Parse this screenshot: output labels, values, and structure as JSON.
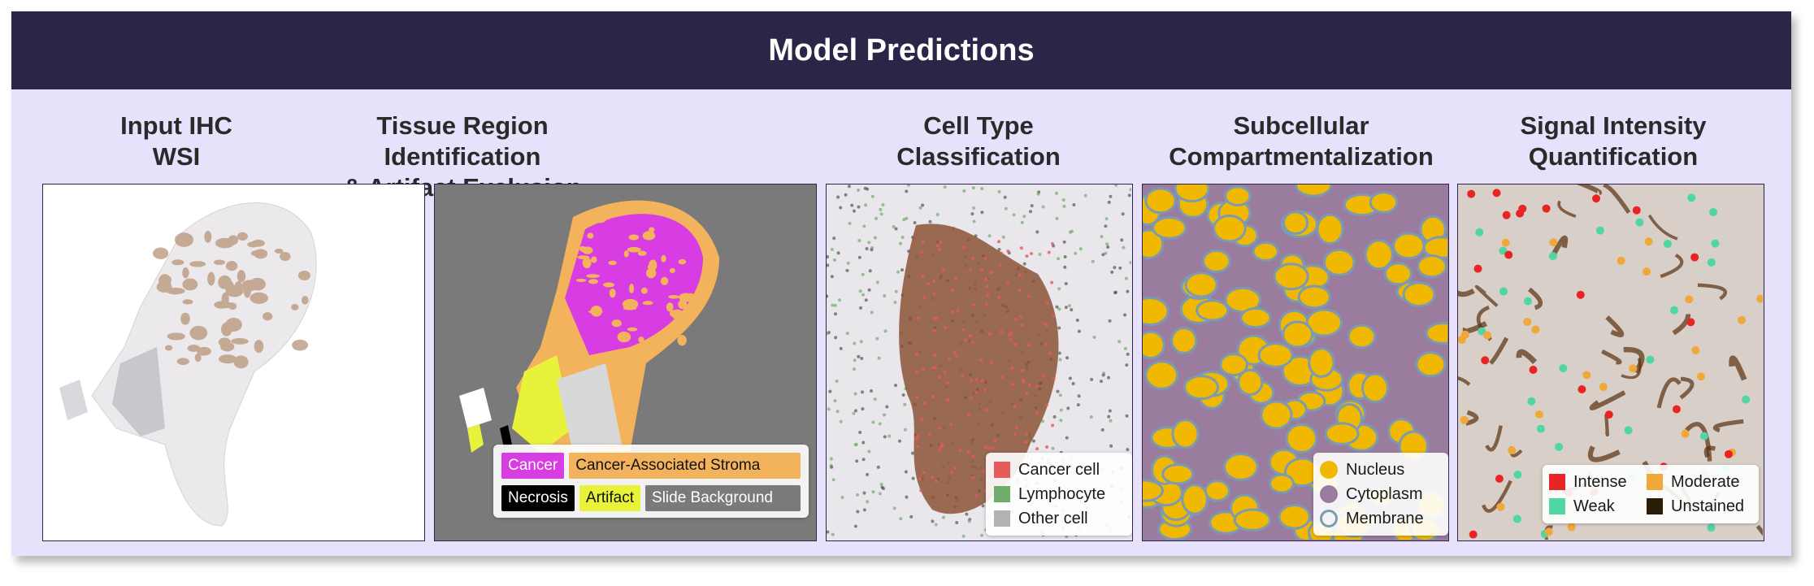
{
  "banner": {
    "title": "Model Predictions"
  },
  "panels": [
    {
      "title": "Input IHC\nWSI"
    },
    {
      "title": "Tissue Region Identification\n& Artifact Exclusion"
    },
    {
      "title": "Cell Type\nClassification"
    },
    {
      "title": "Subcellular\nCompartmentalization"
    },
    {
      "title": "Signal Intensity\nQuantification"
    }
  ],
  "tissue_legend": [
    {
      "label": "Cancer",
      "color": "#d83ce3",
      "text_color": "#ffffff"
    },
    {
      "label": "Cancer-Associated Stroma",
      "color": "#f3b35c",
      "text_color": "#111111"
    },
    {
      "label": "Necrosis",
      "color": "#000000",
      "text_color": "#ffffff"
    },
    {
      "label": "Artifact",
      "color": "#e8f23a",
      "text_color": "#111111"
    },
    {
      "label": "Slide Background",
      "color": "#7a7a7a",
      "text_color": "#ffffff"
    }
  ],
  "cell_legend": [
    {
      "label": "Cancer cell",
      "color": "#e55a5a"
    },
    {
      "label": "Lymphocyte",
      "color": "#6fae6a"
    },
    {
      "label": "Other cell",
      "color": "#b3b3b3"
    }
  ],
  "compartment_legend": [
    {
      "label": "Nucleus",
      "color": "#f0b800",
      "style": "filled"
    },
    {
      "label": "Cytoplasm",
      "color": "#9a7d9e",
      "style": "filled"
    },
    {
      "label": "Membrane",
      "color": "#7d9bb0",
      "style": "ring"
    }
  ],
  "intensity_legend": [
    {
      "label": "Intense",
      "color": "#e82424"
    },
    {
      "label": "Moderate",
      "color": "#f0a838"
    },
    {
      "label": "Weak",
      "color": "#4fd6a3"
    },
    {
      "label": "Unstained",
      "color": "#2b1c08"
    }
  ]
}
